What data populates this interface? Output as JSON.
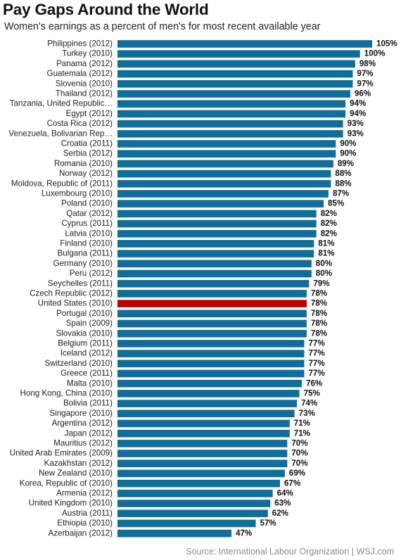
{
  "title": "Pay Gaps Around the World",
  "subtitle": "Women's earnings as a percent of men's for most recent available year",
  "source": "Source: International Labour Organization  |  WSJ.com",
  "colors": {
    "bar": "#0f6e9c",
    "highlight": "#c00000",
    "label": "#222222",
    "value": "#111111"
  },
  "chart_data": {
    "type": "bar",
    "orientation": "horizontal",
    "unit": "%",
    "highlight": "United States (2010)",
    "categories": [
      "Philippines (2012)",
      "Turkey (2010)",
      "Panama (2012)",
      "Guatemala (2012)",
      "Slovenia (2010)",
      "Thailand (2012)",
      "Tanzania, United Republic…",
      "Egypt (2012)",
      "Costa Rica (2012)",
      "Venezuela, Bolivarian Rep…",
      "Croatia (2011)",
      "Serbia (2012)",
      "Romania (2010)",
      "Norway (2012)",
      "Moldova, Republic of (2011)",
      "Luxembourg (2010)",
      "Poland (2010)",
      "Qatar (2012)",
      "Cyprus (2011)",
      "Latvia (2010)",
      "Finland (2010)",
      "Bulgaria (2011)",
      "Germany (2010)",
      "Peru (2012)",
      "Seychelles (2011)",
      "Czech Republic (2012)",
      "United States (2010)",
      "Portugal (2010)",
      "Spain (2009)",
      "Slovakia (2010)",
      "Belgium (2011)",
      "Iceland (2012)",
      "Switzerland (2010)",
      "Greece (2011)",
      "Malta (2010)",
      "Hong Kong, China (2010)",
      "Bolivia (2011)",
      "Singapore (2010)",
      "Argentina (2012)",
      "Japan (2012)",
      "Mauritius (2012)",
      "United Arab Emirates (2009)",
      "Kazakhstan (2012)",
      "New Zealand (2010)",
      "Korea, Republic of (2010)",
      "Armenia (2012)",
      "United Kingdom (2010)",
      "Austria (2011)",
      "Ethiopia (2010)",
      "Azerbaijan (2012)"
    ],
    "values": [
      105,
      100,
      98,
      97,
      97,
      96,
      94,
      94,
      93,
      93,
      90,
      90,
      89,
      88,
      88,
      87,
      85,
      82,
      82,
      82,
      81,
      81,
      80,
      80,
      79,
      78,
      78,
      78,
      78,
      78,
      77,
      77,
      77,
      77,
      76,
      75,
      74,
      73,
      71,
      71,
      70,
      70,
      70,
      69,
      67,
      64,
      63,
      62,
      57,
      47
    ],
    "xlim": [
      0,
      105
    ],
    "grid": false,
    "legend": "none"
  }
}
